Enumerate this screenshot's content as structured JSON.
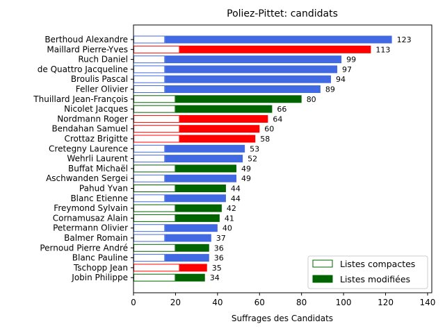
{
  "chart_data": {
    "type": "bar",
    "orientation": "horizontal",
    "title": "Poliez-Pittet: candidats",
    "xlabel": "Suffrages des Candidats",
    "ylabel": "",
    "xlim": [
      0,
      142
    ],
    "xticks": [
      0,
      20,
      40,
      60,
      80,
      100,
      120,
      140
    ],
    "grid": false,
    "legend_position": "bottom-right",
    "legend": [
      {
        "name": "Listes compactes",
        "style": "outline"
      },
      {
        "name": "Listes modifiées",
        "style": "filled"
      }
    ],
    "party_colors": {
      "blue": "#4169e1",
      "red": "#ff0000",
      "green": "#006400"
    },
    "candidates": [
      {
        "name": "Berthoud Alexandre",
        "total": 123,
        "compact": 15,
        "party": "blue"
      },
      {
        "name": "Maillard Pierre-Yves",
        "total": 113,
        "compact": 22,
        "party": "red"
      },
      {
        "name": "Ruch Daniel",
        "total": 99,
        "compact": 15,
        "party": "blue"
      },
      {
        "name": "de Quattro Jacqueline",
        "total": 97,
        "compact": 15,
        "party": "blue"
      },
      {
        "name": "Broulis Pascal",
        "total": 94,
        "compact": 15,
        "party": "blue"
      },
      {
        "name": "Feller Olivier",
        "total": 89,
        "compact": 15,
        "party": "blue"
      },
      {
        "name": "Thuillard Jean-François",
        "total": 80,
        "compact": 20,
        "party": "green"
      },
      {
        "name": "Nicolet Jacques",
        "total": 66,
        "compact": 20,
        "party": "green"
      },
      {
        "name": "Nordmann Roger",
        "total": 64,
        "compact": 22,
        "party": "red"
      },
      {
        "name": "Bendahan Samuel",
        "total": 60,
        "compact": 22,
        "party": "red"
      },
      {
        "name": "Crottaz Brigitte",
        "total": 58,
        "compact": 22,
        "party": "red"
      },
      {
        "name": "Cretegny Laurence",
        "total": 53,
        "compact": 15,
        "party": "blue"
      },
      {
        "name": "Wehrli Laurent",
        "total": 52,
        "compact": 15,
        "party": "blue"
      },
      {
        "name": "Buffat Michaël",
        "total": 49,
        "compact": 20,
        "party": "green"
      },
      {
        "name": "Aschwanden Sergei",
        "total": 49,
        "compact": 15,
        "party": "blue"
      },
      {
        "name": "Pahud Yvan",
        "total": 44,
        "compact": 20,
        "party": "green"
      },
      {
        "name": "Blanc Etienne",
        "total": 44,
        "compact": 15,
        "party": "blue"
      },
      {
        "name": "Freymond Sylvain",
        "total": 42,
        "compact": 20,
        "party": "green"
      },
      {
        "name": "Cornamusaz Alain",
        "total": 41,
        "compact": 20,
        "party": "green"
      },
      {
        "name": "Petermann Olivier",
        "total": 40,
        "compact": 15,
        "party": "blue"
      },
      {
        "name": "Balmer Romain",
        "total": 37,
        "compact": 15,
        "party": "blue"
      },
      {
        "name": "Pernoud Pierre André",
        "total": 36,
        "compact": 20,
        "party": "green"
      },
      {
        "name": "Blanc Pauline",
        "total": 36,
        "compact": 15,
        "party": "blue"
      },
      {
        "name": "Tschopp Jean",
        "total": 35,
        "compact": 22,
        "party": "red"
      },
      {
        "name": "Jobin Philippe",
        "total": 34,
        "compact": 20,
        "party": "green"
      }
    ]
  }
}
